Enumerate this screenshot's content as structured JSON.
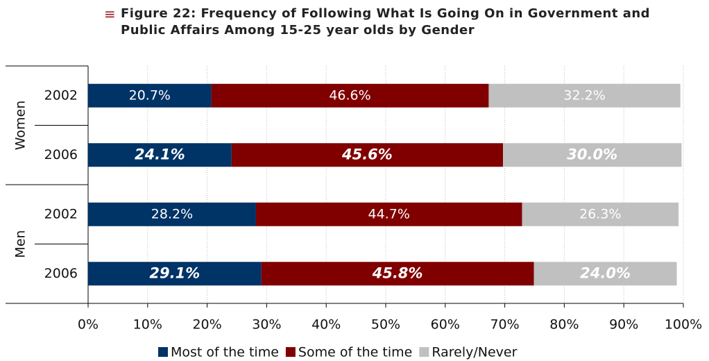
{
  "chart_data": {
    "type": "stacked-bar-horizontal",
    "title": "Figure 22: Frequency of Following What Is Going On in Government and Public Affairs Among 15-25 year olds by Gender",
    "groups": [
      "Women",
      "Men"
    ],
    "categories": [
      "2002",
      "2006",
      "2002",
      "2006"
    ],
    "series": [
      {
        "name": "Most of the time",
        "color": "#003366",
        "values": [
          20.7,
          24.1,
          28.2,
          29.1
        ],
        "value_labels": [
          "20.7%",
          "24.1%",
          "28.2%",
          "29.1%"
        ]
      },
      {
        "name": "Some of the time",
        "color": "#800000",
        "values": [
          46.6,
          45.6,
          44.7,
          45.8
        ],
        "value_labels": [
          "46.6%",
          "45.6%",
          "44.7%",
          "45.8%"
        ]
      },
      {
        "name": "Rarely/Never",
        "color": "#c0c0c0",
        "values": [
          32.2,
          30.0,
          26.3,
          24.0
        ],
        "value_labels": [
          "32.2%",
          "30.0%",
          "26.3%",
          "24.0%"
        ]
      }
    ],
    "xlim": [
      0,
      100
    ],
    "xticks": [
      {
        "value": 0,
        "label": "0%"
      },
      {
        "value": 10,
        "label": "10%"
      },
      {
        "value": 20,
        "label": "20%"
      },
      {
        "value": 30,
        "label": "30%"
      },
      {
        "value": 40,
        "label": "40%"
      },
      {
        "value": 50,
        "label": "50%"
      },
      {
        "value": 60,
        "label": "60%"
      },
      {
        "value": 70,
        "label": "70%"
      },
      {
        "value": 80,
        "label": "80%"
      },
      {
        "value": 90,
        "label": "90%"
      },
      {
        "value": 100,
        "label": "100%"
      }
    ],
    "grid": true,
    "legend": "bottom"
  }
}
